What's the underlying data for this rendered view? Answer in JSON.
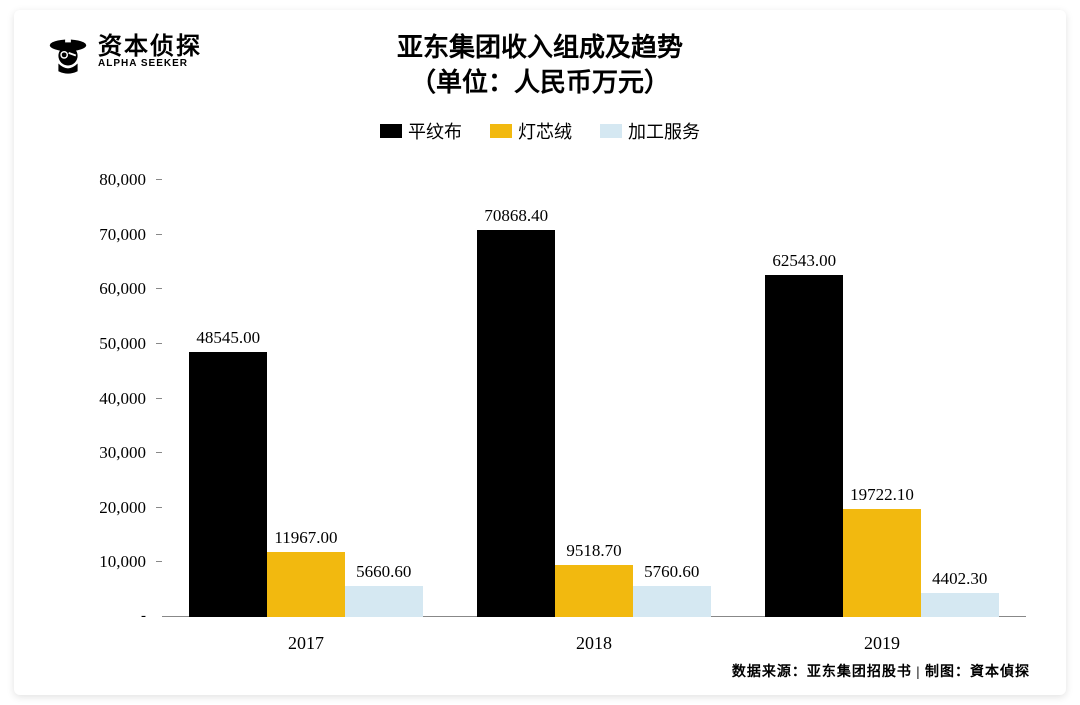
{
  "logo": {
    "cn": "资本侦探",
    "en": "ALPHA SEEKER"
  },
  "title_line1": "亚东集团收入组成及趋势",
  "title_line2": "（单位：人民币万元）",
  "legend": [
    {
      "label": "平纹布",
      "color": "#000000"
    },
    {
      "label": "灯芯绒",
      "color": "#f2b90f"
    },
    {
      "label": "加工服务",
      "color": "#d5e8f2"
    }
  ],
  "chart": {
    "type": "bar-grouped",
    "ylim": [
      0,
      80000
    ],
    "ytick_step": 10000,
    "yticks": [
      "80,000",
      "70,000",
      "60,000",
      "50,000",
      "40,000",
      "30,000",
      "20,000",
      "10,000"
    ],
    "ytick_values": [
      80000,
      70000,
      60000,
      50000,
      40000,
      30000,
      20000,
      10000
    ],
    "zero_label": "-",
    "categories": [
      "2017",
      "2018",
      "2019"
    ],
    "series": [
      {
        "name": "平纹布",
        "color": "#000000",
        "values": [
          48545.0,
          70868.4,
          62543.0
        ],
        "labels": [
          "48545.00",
          "70868.40",
          "62543.00"
        ]
      },
      {
        "name": "灯芯绒",
        "color": "#f2b90f",
        "values": [
          11967.0,
          9518.7,
          19722.1
        ],
        "labels": [
          "11967.00",
          "9518.70",
          "19722.10"
        ]
      },
      {
        "name": "加工服务",
        "color": "#d5e8f2",
        "values": [
          5660.6,
          5760.6,
          4402.3
        ],
        "labels": [
          "5660.60",
          "5760.60",
          "4402.30"
        ]
      }
    ],
    "bar_width_ratio": 0.27,
    "group_gap_ratio": 0.1,
    "grid": false,
    "background_color": "#ffffff",
    "axis_color": "#888888",
    "label_fontsize": 17,
    "title_fontsize": 26
  },
  "source_text": "数据来源：亚东集团招股书 | 制图：資本偵探"
}
